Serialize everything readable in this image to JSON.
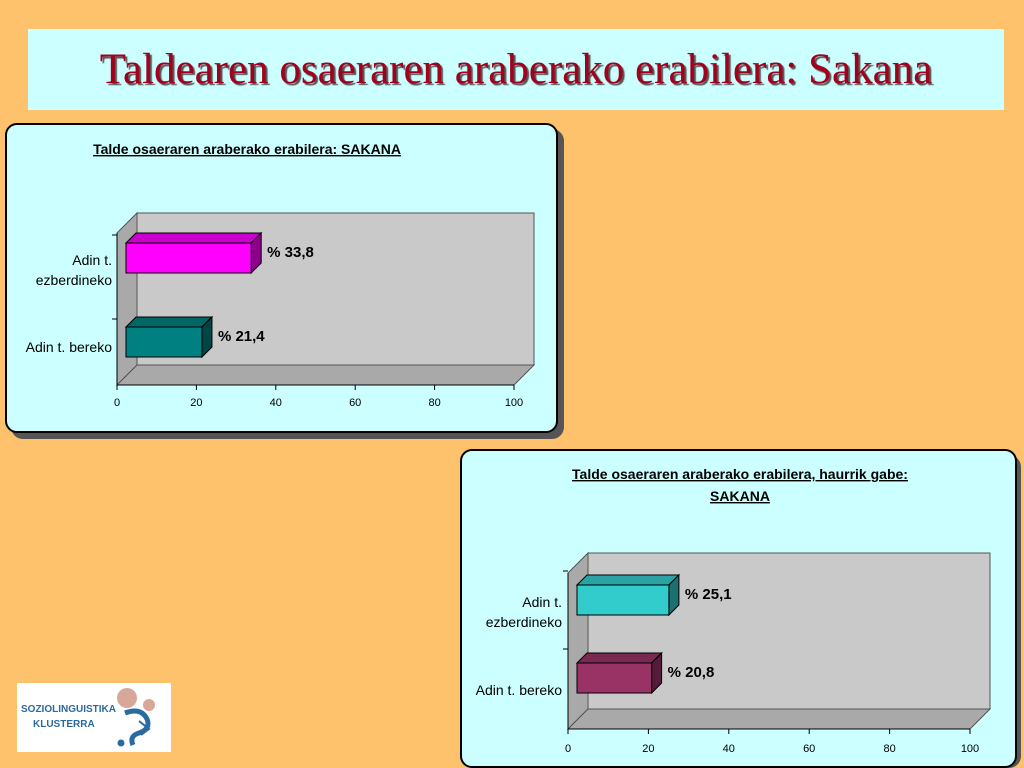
{
  "slide_title": "Taldearen osaeraren araberako erabilera: Sakana",
  "logo": {
    "line1": "SOZIOLINGUISTIKA",
    "line2": "KLUSTERRA"
  },
  "chart_data": [
    {
      "type": "bar",
      "orientation": "horizontal",
      "title_lines": [
        "Talde osaeraren araberako erabilera: SAKANA"
      ],
      "categories": [
        [
          "Adin t.",
          "ezberdineko"
        ],
        [
          "Adin t. bereko"
        ]
      ],
      "values": [
        33.8,
        21.4
      ],
      "value_labels": [
        "% 33,8",
        "% 21,4"
      ],
      "bar_colors": [
        "#FF00FF",
        "#008080"
      ],
      "xlim": [
        0,
        100
      ],
      "xticks": [
        "0",
        "20",
        "40",
        "60",
        "80",
        "100"
      ],
      "grid": false,
      "legend": "none"
    },
    {
      "type": "bar",
      "orientation": "horizontal",
      "title_lines": [
        "Talde osaeraren araberako erabilera, haurrik gabe:",
        "SAKANA"
      ],
      "categories": [
        [
          "Adin t.",
          "ezberdineko"
        ],
        [
          "Adin t. bereko"
        ]
      ],
      "values": [
        25.1,
        20.8
      ],
      "value_labels": [
        "% 25,1",
        "% 20,8"
      ],
      "bar_colors": [
        "#33CCCC",
        "#993366"
      ],
      "xlim": [
        0,
        100
      ],
      "xticks": [
        "0",
        "20",
        "40",
        "60",
        "80",
        "100"
      ],
      "grid": false,
      "legend": "none"
    }
  ]
}
